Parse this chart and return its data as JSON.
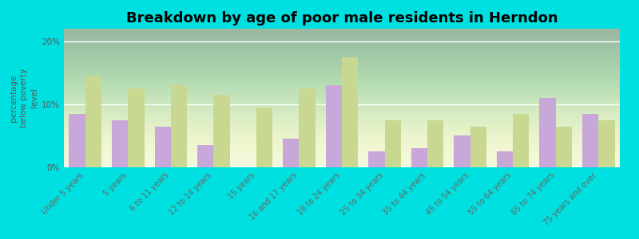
{
  "title": "Breakdown by age of poor male residents in Herndon",
  "ylabel": "percentage\nbelow poverty\nlevel",
  "categories": [
    "Under 5 years",
    "5 years",
    "6 to 11 years",
    "12 to 14 years",
    "15 years",
    "16 and 17 years",
    "18 to 24 years",
    "25 to 34 years",
    "35 to 44 years",
    "45 to 54 years",
    "55 to 64 years",
    "65 to 74 years",
    "75 years and over"
  ],
  "herndon_values": [
    8.5,
    7.5,
    6.5,
    3.5,
    0,
    4.5,
    13.0,
    2.5,
    3.0,
    5.0,
    2.5,
    11.0,
    8.5
  ],
  "virginia_values": [
    14.5,
    12.5,
    13.0,
    11.5,
    9.5,
    12.5,
    17.5,
    7.5,
    7.5,
    6.5,
    8.5,
    6.5,
    7.5
  ],
  "herndon_color": "#c8a8d8",
  "virginia_color": "#c8d890",
  "background_color": "#00e0e0",
  "ylim": [
    0,
    22
  ],
  "yticks": [
    0,
    10,
    20
  ],
  "ytick_labels": [
    "0%",
    "10%",
    "20%"
  ],
  "bar_width": 0.38,
  "title_fontsize": 13,
  "axis_label_fontsize": 7.5,
  "tick_label_fontsize": 7.0,
  "legend_fontsize": 9
}
